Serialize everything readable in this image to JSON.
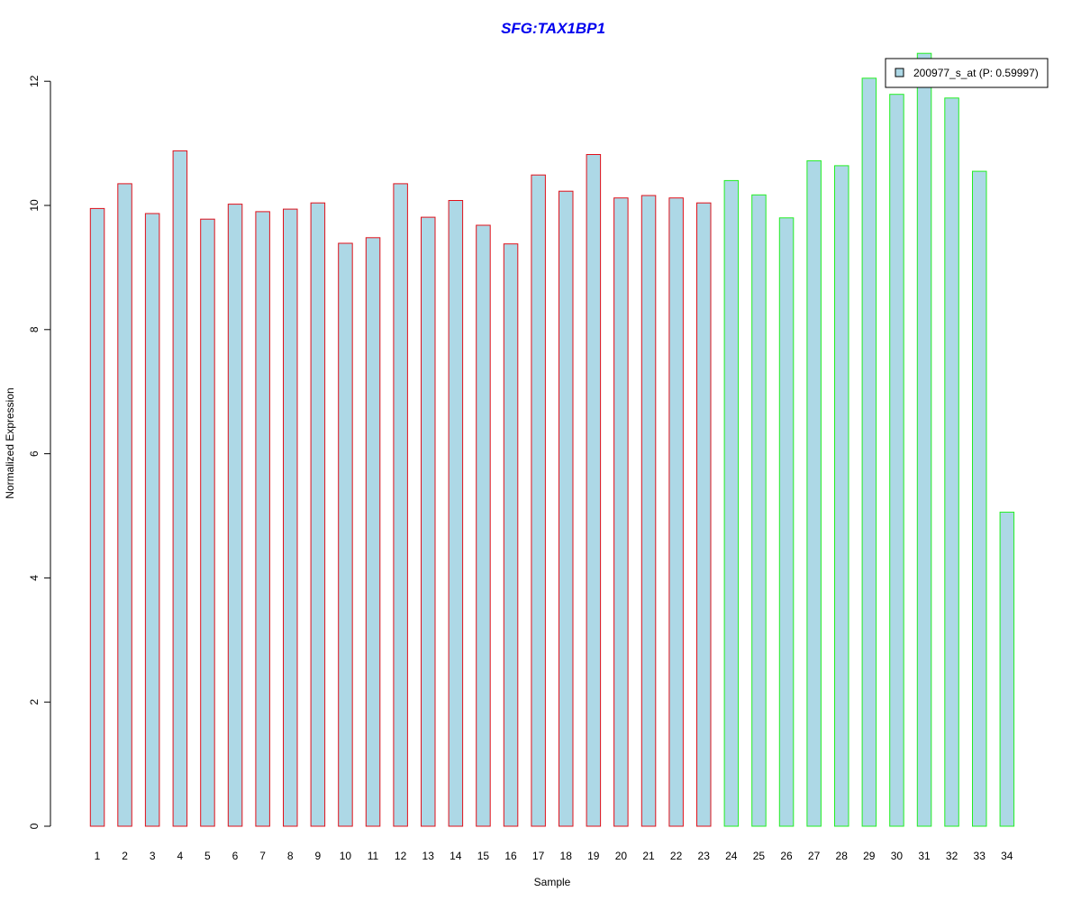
{
  "chart_data": {
    "type": "bar",
    "title": "SFG:TAX1BP1",
    "xlabel": "Sample",
    "ylabel": "Normalized Expression",
    "ylim": [
      0,
      12.5
    ],
    "yticks": [
      0,
      2,
      4,
      6,
      8,
      10,
      12
    ],
    "grid": false,
    "legend_position": "top-right",
    "categories": [
      "1",
      "2",
      "3",
      "4",
      "5",
      "6",
      "7",
      "8",
      "9",
      "10",
      "11",
      "12",
      "13",
      "14",
      "15",
      "16",
      "17",
      "18",
      "19",
      "20",
      "21",
      "22",
      "23",
      "24",
      "25",
      "26",
      "27",
      "28",
      "29",
      "30",
      "31",
      "32",
      "33",
      "34"
    ],
    "series": [
      {
        "name": "200977_s_at (P: 0.59997)",
        "values": [
          9.95,
          10.35,
          9.87,
          10.88,
          9.78,
          10.02,
          9.9,
          9.94,
          10.04,
          9.39,
          9.48,
          10.35,
          9.81,
          10.08,
          9.68,
          9.38,
          10.49,
          10.23,
          10.82,
          10.12,
          10.16,
          10.12,
          10.04,
          10.4,
          10.17,
          9.8,
          10.72,
          10.64,
          12.05,
          11.79,
          12.45,
          11.73,
          10.55,
          5.06
        ]
      }
    ],
    "groups": [
      {
        "from": 1,
        "to": 23,
        "border_color": "#e0101a"
      },
      {
        "from": 24,
        "to": 34,
        "border_color": "#22ee22"
      }
    ]
  },
  "colors": {
    "bar_fill": "#add8e6",
    "title": "#0000ee",
    "axis": "#000000"
  }
}
